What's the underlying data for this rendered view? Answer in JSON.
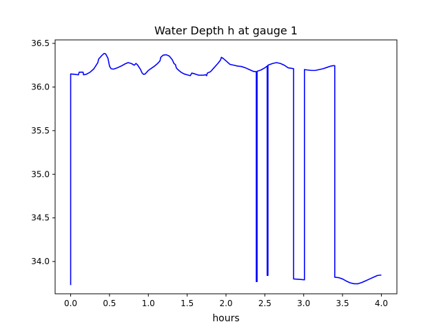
{
  "chart_data": {
    "type": "line",
    "title": "Water Depth h at gauge 1",
    "xlabel": "hours",
    "ylabel": "",
    "xlim": [
      -0.2,
      4.2
    ],
    "ylim": [
      33.63,
      36.54
    ],
    "grid": false,
    "legend": "none",
    "xticks": [
      {
        "value": 0.0,
        "label": "0.0"
      },
      {
        "value": 0.5,
        "label": "0.5"
      },
      {
        "value": 1.0,
        "label": "1.0"
      },
      {
        "value": 1.5,
        "label": "1.5"
      },
      {
        "value": 2.0,
        "label": "2.0"
      },
      {
        "value": 2.5,
        "label": "2.5"
      },
      {
        "value": 3.0,
        "label": "3.0"
      },
      {
        "value": 3.5,
        "label": "3.5"
      },
      {
        "value": 4.0,
        "label": "4.0"
      }
    ],
    "yticks": [
      {
        "value": 34.0,
        "label": "34.0"
      },
      {
        "value": 34.5,
        "label": "34.5"
      },
      {
        "value": 35.0,
        "label": "35.0"
      },
      {
        "value": 35.5,
        "label": "35.5"
      },
      {
        "value": 36.0,
        "label": "36.0"
      },
      {
        "value": 36.5,
        "label": "36.5"
      }
    ],
    "series": [
      {
        "color": "#0000ff",
        "points": [
          [
            0.0,
            33.73
          ],
          [
            0.0,
            36.15
          ],
          [
            0.05,
            36.145
          ],
          [
            0.1,
            36.14
          ],
          [
            0.11,
            36.17
          ],
          [
            0.16,
            36.17
          ],
          [
            0.165,
            36.14
          ],
          [
            0.2,
            36.145
          ],
          [
            0.25,
            36.17
          ],
          [
            0.3,
            36.21
          ],
          [
            0.35,
            36.28
          ],
          [
            0.36,
            36.32
          ],
          [
            0.4,
            36.36
          ],
          [
            0.43,
            36.385
          ],
          [
            0.45,
            36.38
          ],
          [
            0.48,
            36.33
          ],
          [
            0.5,
            36.24
          ],
          [
            0.52,
            36.21
          ],
          [
            0.55,
            36.205
          ],
          [
            0.6,
            36.22
          ],
          [
            0.65,
            36.24
          ],
          [
            0.7,
            36.265
          ],
          [
            0.74,
            36.28
          ],
          [
            0.78,
            36.27
          ],
          [
            0.82,
            36.25
          ],
          [
            0.84,
            36.27
          ],
          [
            0.86,
            36.255
          ],
          [
            0.9,
            36.2
          ],
          [
            0.92,
            36.16
          ],
          [
            0.94,
            36.145
          ],
          [
            0.96,
            36.15
          ],
          [
            1.0,
            36.19
          ],
          [
            1.04,
            36.215
          ],
          [
            1.08,
            36.24
          ],
          [
            1.12,
            36.27
          ],
          [
            1.15,
            36.3
          ],
          [
            1.16,
            36.34
          ],
          [
            1.19,
            36.365
          ],
          [
            1.23,
            36.37
          ],
          [
            1.27,
            36.355
          ],
          [
            1.31,
            36.31
          ],
          [
            1.33,
            36.27
          ],
          [
            1.35,
            36.255
          ],
          [
            1.36,
            36.22
          ],
          [
            1.38,
            36.2
          ],
          [
            1.42,
            36.17
          ],
          [
            1.46,
            36.15
          ],
          [
            1.5,
            36.14
          ],
          [
            1.54,
            36.13
          ],
          [
            1.56,
            36.16
          ],
          [
            1.6,
            36.15
          ],
          [
            1.65,
            36.135
          ],
          [
            1.7,
            36.135
          ],
          [
            1.74,
            36.14
          ],
          [
            1.75,
            36.13
          ],
          [
            1.76,
            36.16
          ],
          [
            1.8,
            36.175
          ],
          [
            1.85,
            36.225
          ],
          [
            1.9,
            36.275
          ],
          [
            1.93,
            36.31
          ],
          [
            1.94,
            36.34
          ],
          [
            1.96,
            36.33
          ],
          [
            2.0,
            36.3
          ],
          [
            2.05,
            36.26
          ],
          [
            2.1,
            36.25
          ],
          [
            2.15,
            36.24
          ],
          [
            2.2,
            36.235
          ],
          [
            2.25,
            36.22
          ],
          [
            2.3,
            36.2
          ],
          [
            2.35,
            36.18
          ],
          [
            2.39,
            36.175
          ],
          [
            2.39,
            33.77
          ],
          [
            2.4,
            33.77
          ],
          [
            2.4,
            36.18
          ],
          [
            2.45,
            36.195
          ],
          [
            2.5,
            36.22
          ],
          [
            2.53,
            36.24
          ],
          [
            2.53,
            33.84
          ],
          [
            2.54,
            33.84
          ],
          [
            2.54,
            36.25
          ],
          [
            2.6,
            36.27
          ],
          [
            2.65,
            36.28
          ],
          [
            2.7,
            36.27
          ],
          [
            2.75,
            36.25
          ],
          [
            2.8,
            36.22
          ],
          [
            2.87,
            36.21
          ],
          [
            2.87,
            33.8
          ],
          [
            2.95,
            33.795
          ],
          [
            3.01,
            33.79
          ],
          [
            3.01,
            36.2
          ],
          [
            3.05,
            36.195
          ],
          [
            3.1,
            36.19
          ],
          [
            3.15,
            36.19
          ],
          [
            3.2,
            36.2
          ],
          [
            3.25,
            36.21
          ],
          [
            3.3,
            36.225
          ],
          [
            3.35,
            36.24
          ],
          [
            3.38,
            36.245
          ],
          [
            3.4,
            36.245
          ],
          [
            3.4,
            33.82
          ],
          [
            3.45,
            33.815
          ],
          [
            3.5,
            33.8
          ],
          [
            3.55,
            33.775
          ],
          [
            3.6,
            33.755
          ],
          [
            3.65,
            33.745
          ],
          [
            3.7,
            33.745
          ],
          [
            3.75,
            33.76
          ],
          [
            3.8,
            33.78
          ],
          [
            3.85,
            33.8
          ],
          [
            3.9,
            33.82
          ],
          [
            3.95,
            33.84
          ],
          [
            4.0,
            33.845
          ]
        ]
      }
    ]
  }
}
